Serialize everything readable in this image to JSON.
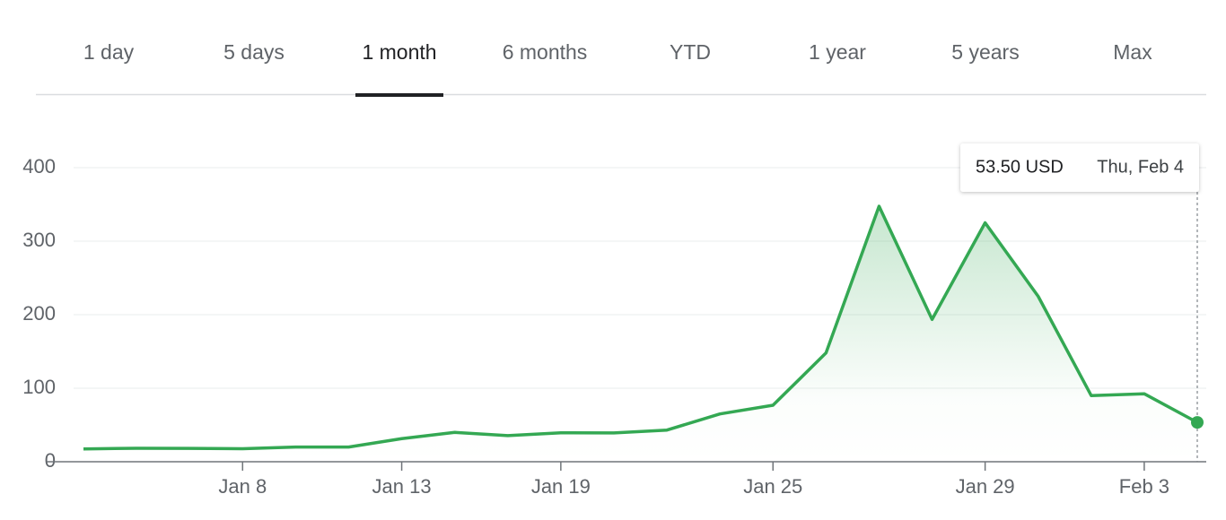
{
  "tabs": [
    "1 day",
    "5 days",
    "1 month",
    "6 months",
    "YTD",
    "1 year",
    "5 years",
    "Max"
  ],
  "active_tab": 2,
  "chart_data": {
    "type": "line",
    "categories": [
      null,
      null,
      null,
      "Jan 8",
      null,
      null,
      "Jan 13",
      null,
      null,
      "Jan 19",
      null,
      null,
      null,
      "Jan 25",
      null,
      null,
      null,
      "Jan 29",
      null,
      null,
      "Feb 3",
      null
    ],
    "values": [
      17.37,
      18.36,
      18.08,
      17.69,
      19.94,
      19.95,
      31.4,
      39.91,
      35.5,
      39.36,
      39.12,
      43.03,
      65.01,
      76.79,
      147.98,
      347.51,
      193.6,
      325.0,
      225.0,
      90.0,
      92.41,
      53.5
    ],
    "color": "#34a853",
    "ylim": [
      0,
      400
    ],
    "yticks": [
      0,
      100,
      200,
      300,
      400
    ],
    "grid": true,
    "tooltip": {
      "price": "53.50 USD",
      "date": "Thu, Feb 4"
    }
  }
}
